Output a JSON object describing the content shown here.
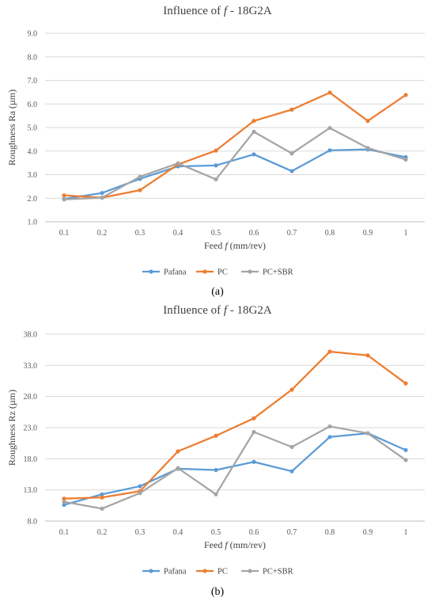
{
  "panels": [
    {
      "caption": "(a)",
      "chart_data": {
        "type": "line",
        "title_pre": "Influence of ",
        "title_var": "f",
        "title_post": " - 18G2A",
        "xlabel_pre": "Feed ",
        "xlabel_var": "f",
        "xlabel_post": " (mm/rev)",
        "ylabel": "Roughness Ra (µm)",
        "categories": [
          "0.1",
          "0.2",
          "0.3",
          "0.4",
          "0.5",
          "0.6",
          "0.7",
          "0.8",
          "0.9",
          "1"
        ],
        "ylim": [
          1.0,
          9.0
        ],
        "yticks": [
          "1.0",
          "2.0",
          "3.0",
          "4.0",
          "5.0",
          "6.0",
          "7.0",
          "8.0",
          "9.0"
        ],
        "grid": true,
        "legend_position": "bottom",
        "series": [
          {
            "name": "Pafana",
            "color": "#5b9bd5",
            "values": [
              1.97,
              2.22,
              2.82,
              3.35,
              3.39,
              3.86,
              3.15,
              4.03,
              4.07,
              3.74
            ]
          },
          {
            "name": "PC",
            "color": "#ed7d31",
            "values": [
              2.12,
              2.02,
              2.34,
              3.43,
              4.02,
              5.28,
              5.76,
              6.48,
              5.28,
              6.38
            ]
          },
          {
            "name": "PC+SBR",
            "color": "#a5a5a5",
            "values": [
              1.95,
              2.02,
              2.91,
              3.48,
              2.8,
              4.82,
              3.9,
              4.98,
              4.13,
              3.64
            ]
          }
        ]
      }
    },
    {
      "caption": "(b)",
      "chart_data": {
        "type": "line",
        "title_pre": "Influence of ",
        "title_var": "f",
        "title_post": " - 18G2A",
        "xlabel_pre": "Feed ",
        "xlabel_var": "f",
        "xlabel_post": " (mm/rev)",
        "ylabel": "Roughness Rz (µm)",
        "categories": [
          "0.1",
          "0.2",
          "0.3",
          "0.4",
          "0.5",
          "0.6",
          "0.7",
          "0.8",
          "0.9",
          "1"
        ],
        "ylim": [
          8.0,
          38.0
        ],
        "yticks": [
          "8.0",
          "13.0",
          "18.0",
          "23.0",
          "28.0",
          "33.0",
          "38.0"
        ],
        "grid": true,
        "legend_position": "bottom",
        "series": [
          {
            "name": "Pafana",
            "color": "#5b9bd5",
            "values": [
              10.6,
              12.3,
              13.6,
              16.4,
              16.2,
              17.5,
              16.0,
              21.5,
              22.1,
              19.4
            ]
          },
          {
            "name": "PC",
            "color": "#ed7d31",
            "values": [
              11.6,
              11.8,
              12.8,
              19.2,
              21.7,
              24.5,
              29.1,
              35.2,
              34.6,
              30.1
            ]
          },
          {
            "name": "PC+SBR",
            "color": "#a5a5a5",
            "values": [
              11.1,
              10.0,
              12.5,
              16.5,
              12.3,
              22.3,
              19.9,
              23.2,
              22.1,
              17.8
            ]
          }
        ]
      }
    }
  ]
}
